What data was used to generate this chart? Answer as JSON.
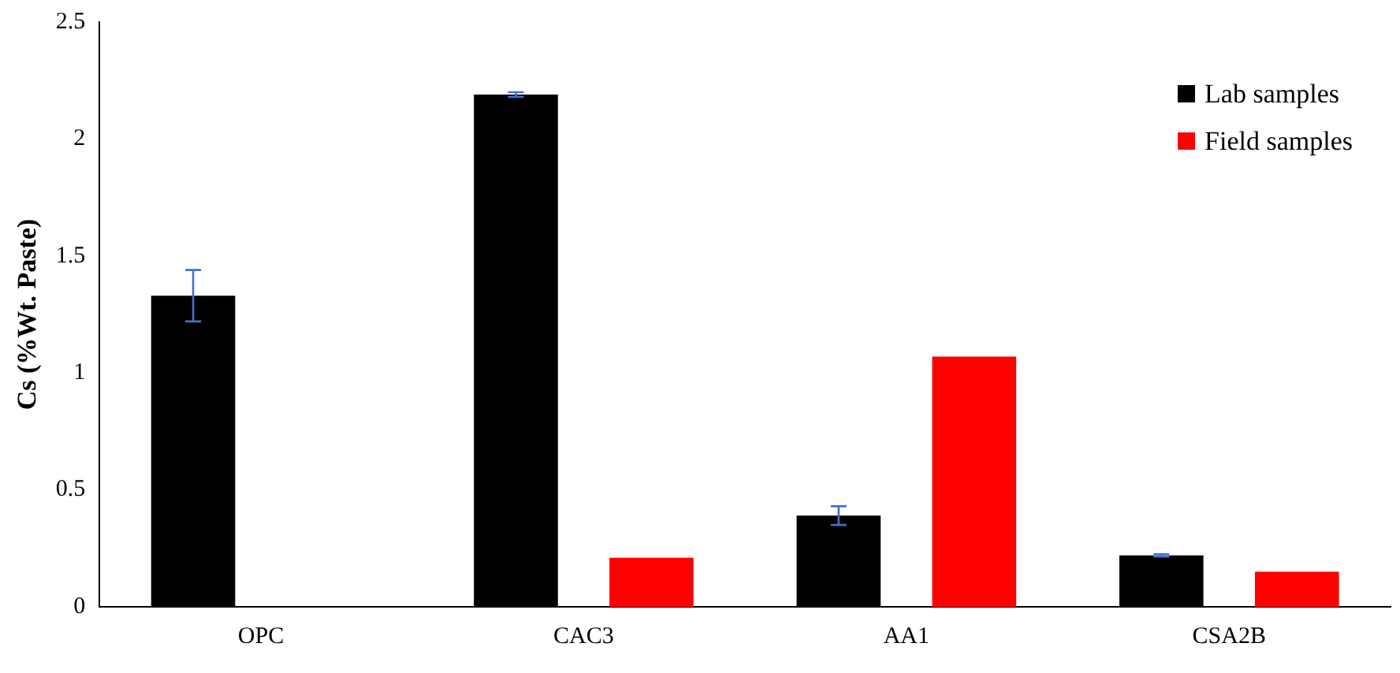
{
  "chart_data": {
    "type": "bar",
    "ylabel": "Cs (%Wt. Paste)",
    "categories": [
      "OPC",
      "CAC3",
      "AA1",
      "CSA2B"
    ],
    "series": [
      {
        "name": "Lab samples",
        "color": "#000000",
        "values": [
          1.33,
          2.19,
          0.39,
          0.22
        ],
        "errors": [
          0.11,
          0.01,
          0.04,
          0.005
        ]
      },
      {
        "name": "Field samples",
        "color": "#ff0000",
        "values": [
          null,
          0.21,
          1.07,
          0.15
        ]
      }
    ],
    "ylim": [
      0,
      2.5
    ],
    "yticks": [
      0,
      0.5,
      1,
      1.5,
      2,
      2.5
    ],
    "grid": false,
    "legend": "top right"
  }
}
